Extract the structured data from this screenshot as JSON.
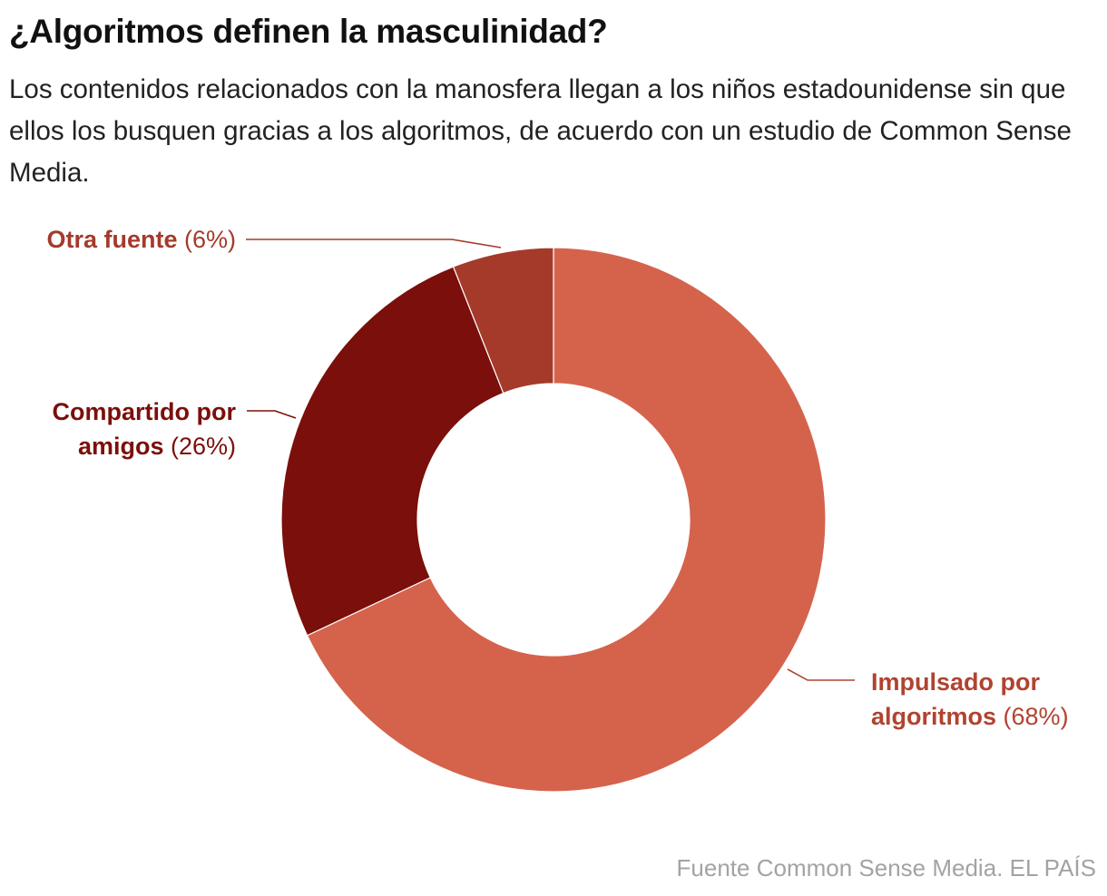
{
  "title": "¿Algoritmos definen la masculinidad?",
  "subtitle": "Los contenidos relacionados con la manosfera llegan a los niños estadounidense sin que ellos los busquen gracias a los algoritmos, de acuerdo con un estudio de Common Sense Media.",
  "source": "Fuente Common Sense Media. EL PAÍS",
  "chart_data": {
    "type": "pie",
    "variant": "donut",
    "title": "¿Algoritmos definen la masculinidad?",
    "slices": [
      {
        "label_lines": [
          "Impulsado por",
          "algoritmos"
        ],
        "value": 68,
        "value_label": "(68%)",
        "color": "#d5634c"
      },
      {
        "label_lines": [
          "Compartido por",
          "amigos"
        ],
        "value": 26,
        "value_label": "(26%)",
        "color": "#7b0f0b"
      },
      {
        "label_lines": [
          "Otra fuente"
        ],
        "value": 6,
        "value_label": "(6%)",
        "color": "#a53a2b"
      }
    ],
    "label_colors": [
      "#b14330",
      "#7b0f0b",
      "#a53a2b"
    ]
  }
}
